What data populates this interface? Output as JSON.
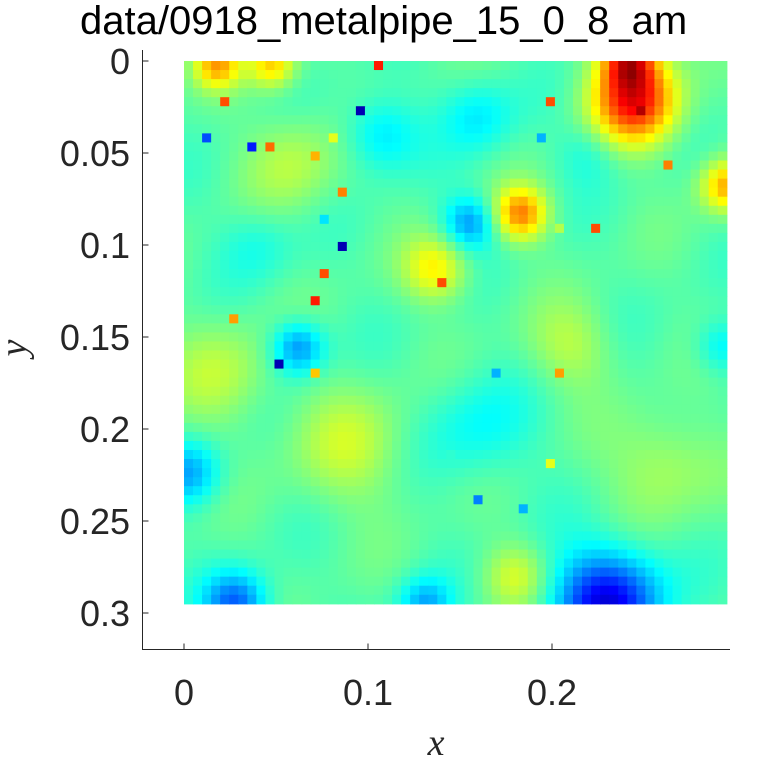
{
  "chart_data": {
    "type": "heatmap",
    "title": "data/0918_metalpipe_15_0_8_am",
    "xlabel": "x",
    "ylabel": "y",
    "xlim": [
      -0.023,
      0.3
    ],
    "ylim": [
      0.32,
      -0.003
    ],
    "y_reversed": true,
    "xticks": [
      0,
      0.1,
      0.2
    ],
    "xtick_labels": [
      "0",
      "0.1",
      "0.2"
    ],
    "yticks": [
      0,
      0.05,
      0.1,
      0.15,
      0.2,
      0.25,
      0.3
    ],
    "ytick_labels": [
      "0",
      "0.05",
      "0.1",
      "0.15",
      "0.2",
      "0.25",
      "0.3"
    ],
    "grid": false,
    "colormap": "jet",
    "value_range": [
      0,
      1
    ],
    "grid_cells": {
      "nx": 60,
      "ny": 60,
      "x_range": [
        0,
        0.295
      ],
      "y_range": [
        0,
        0.295
      ]
    },
    "background_level": 0.46,
    "features": [
      {
        "x": 0.245,
        "y": 0.022,
        "value": 0.86,
        "spread": 0.016
      },
      {
        "x": 0.242,
        "y": 0.0,
        "value": 0.8,
        "spread": 0.01
      },
      {
        "x": 0.018,
        "y": 0.002,
        "value": 0.7,
        "spread": 0.009
      },
      {
        "x": 0.048,
        "y": 0.002,
        "value": 0.67,
        "spread": 0.009
      },
      {
        "x": 0.183,
        "y": 0.083,
        "value": 0.74,
        "spread": 0.01
      },
      {
        "x": 0.295,
        "y": 0.068,
        "value": 0.7,
        "spread": 0.01
      },
      {
        "x": 0.137,
        "y": 0.113,
        "value": 0.63,
        "spread": 0.012
      },
      {
        "x": 0.23,
        "y": 0.295,
        "value": 0.1,
        "spread": 0.02
      },
      {
        "x": 0.028,
        "y": 0.295,
        "value": 0.22,
        "spread": 0.012
      },
      {
        "x": 0.062,
        "y": 0.156,
        "value": 0.26,
        "spread": 0.01
      },
      {
        "x": 0.155,
        "y": 0.088,
        "value": 0.28,
        "spread": 0.01
      },
      {
        "x": 0.003,
        "y": 0.224,
        "value": 0.3,
        "spread": 0.012
      },
      {
        "x": 0.131,
        "y": 0.295,
        "value": 0.3,
        "spread": 0.01
      },
      {
        "x": 0.107,
        "y": 0.04,
        "value": 0.34,
        "spread": 0.014
      },
      {
        "x": 0.292,
        "y": 0.155,
        "value": 0.36,
        "spread": 0.01
      },
      {
        "x": 0.16,
        "y": 0.2,
        "value": 0.38,
        "spread": 0.02
      },
      {
        "x": 0.02,
        "y": 0.17,
        "value": 0.55,
        "spread": 0.02
      },
      {
        "x": 0.09,
        "y": 0.21,
        "value": 0.56,
        "spread": 0.022
      },
      {
        "x": 0.21,
        "y": 0.155,
        "value": 0.55,
        "spread": 0.016
      },
      {
        "x": 0.18,
        "y": 0.28,
        "value": 0.58,
        "spread": 0.012
      },
      {
        "x": 0.26,
        "y": 0.22,
        "value": 0.55,
        "spread": 0.02
      },
      {
        "x": 0.06,
        "y": 0.055,
        "value": 0.55,
        "spread": 0.018
      },
      {
        "x": 0.16,
        "y": 0.03,
        "value": 0.36,
        "spread": 0.014
      },
      {
        "x": 0.04,
        "y": 0.1,
        "value": 0.4,
        "spread": 0.014
      },
      {
        "x": 0.22,
        "y": 0.05,
        "value": 0.4,
        "spread": 0.012
      }
    ],
    "outlier_pixels": [
      {
        "x": 0.107,
        "y": 0.0,
        "value": 0.85
      },
      {
        "x": 0.022,
        "y": 0.022,
        "value": 0.8
      },
      {
        "x": 0.201,
        "y": 0.022,
        "value": 0.8
      },
      {
        "x": 0.097,
        "y": 0.027,
        "value": 0.05
      },
      {
        "x": 0.012,
        "y": 0.042,
        "value": 0.2
      },
      {
        "x": 0.037,
        "y": 0.047,
        "value": 0.15
      },
      {
        "x": 0.047,
        "y": 0.047,
        "value": 0.77
      },
      {
        "x": 0.082,
        "y": 0.042,
        "value": 0.6
      },
      {
        "x": 0.072,
        "y": 0.052,
        "value": 0.7
      },
      {
        "x": 0.192,
        "y": 0.042,
        "value": 0.3
      },
      {
        "x": 0.087,
        "y": 0.072,
        "value": 0.75
      },
      {
        "x": 0.077,
        "y": 0.087,
        "value": 0.35
      },
      {
        "x": 0.087,
        "y": 0.102,
        "value": 0.05
      },
      {
        "x": 0.202,
        "y": 0.092,
        "value": 0.55
      },
      {
        "x": 0.222,
        "y": 0.092,
        "value": 0.8
      },
      {
        "x": 0.077,
        "y": 0.117,
        "value": 0.8
      },
      {
        "x": 0.072,
        "y": 0.132,
        "value": 0.85
      },
      {
        "x": 0.142,
        "y": 0.122,
        "value": 0.8
      },
      {
        "x": 0.027,
        "y": 0.142,
        "value": 0.72
      },
      {
        "x": 0.052,
        "y": 0.167,
        "value": 0.05
      },
      {
        "x": 0.062,
        "y": 0.162,
        "value": 0.3
      },
      {
        "x": 0.072,
        "y": 0.172,
        "value": 0.68
      },
      {
        "x": 0.202,
        "y": 0.172,
        "value": 0.72
      },
      {
        "x": 0.172,
        "y": 0.172,
        "value": 0.3
      },
      {
        "x": 0.147,
        "y": 0.212,
        "value": 0.42
      },
      {
        "x": 0.197,
        "y": 0.217,
        "value": 0.6
      },
      {
        "x": 0.162,
        "y": 0.237,
        "value": 0.25
      },
      {
        "x": 0.182,
        "y": 0.242,
        "value": 0.3
      },
      {
        "x": 0.247,
        "y": 0.027,
        "value": 0.95
      },
      {
        "x": 0.262,
        "y": 0.057,
        "value": 0.75
      }
    ]
  }
}
